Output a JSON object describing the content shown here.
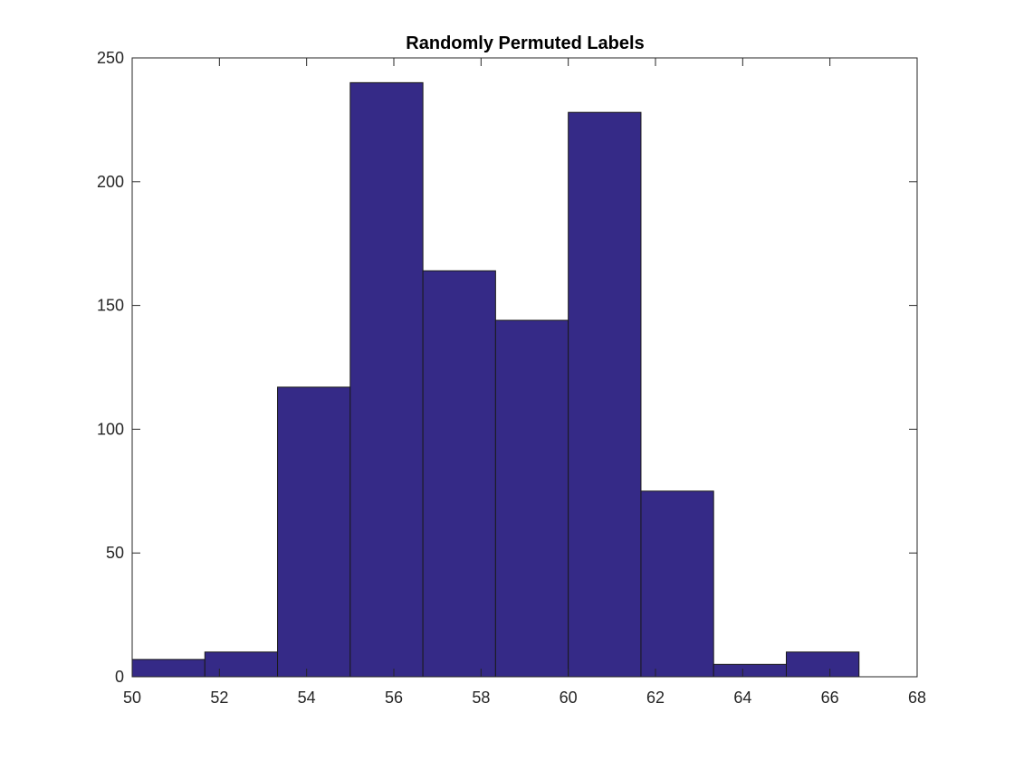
{
  "chart_data": {
    "type": "bar",
    "title": "Randomly Permuted Labels",
    "xlabel": "",
    "ylabel": "",
    "xlim": [
      50,
      68
    ],
    "ylim": [
      0,
      250
    ],
    "xticks": [
      50,
      52,
      54,
      56,
      58,
      60,
      62,
      64,
      66,
      68
    ],
    "yticks": [
      0,
      50,
      100,
      150,
      200,
      250
    ],
    "bin_edges": [
      50,
      51.667,
      53.333,
      55,
      56.667,
      58.333,
      60,
      61.667,
      63.333,
      65,
      66.667
    ],
    "values": [
      7,
      10,
      117,
      240,
      164,
      144,
      228,
      75,
      5,
      10
    ],
    "grid": false,
    "colors": {
      "bar_fill": "#352a87",
      "bar_edge": "#1a1a1a",
      "axes": "#262626"
    }
  }
}
